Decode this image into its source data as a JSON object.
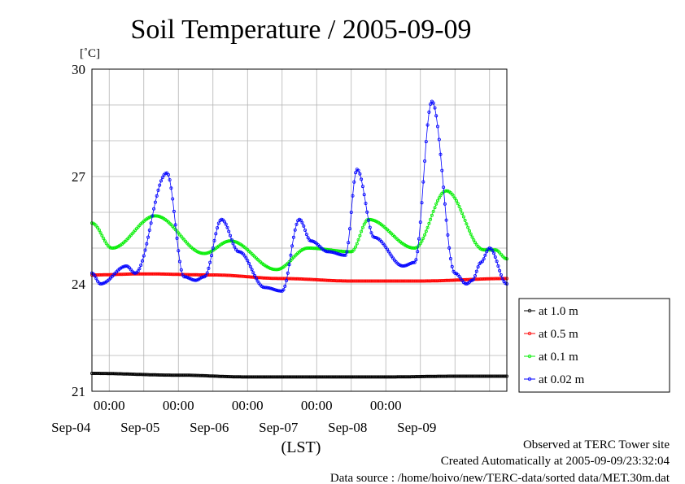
{
  "chart_data": {
    "type": "line",
    "title": "Soil Temperature / 2005-09-09",
    "ylabel": "[˚C]",
    "xlabel": "(LST)",
    "ylim": [
      21,
      30
    ],
    "yticks": [
      21,
      24,
      27,
      30
    ],
    "xlim": [
      "2005-09-03 18:00",
      "2005-09-09 18:00"
    ],
    "xtick_time_labels": [
      "00:00",
      "00:00",
      "00:00",
      "00:00",
      "00:00"
    ],
    "xtick_times": [
      "2005-09-04 00:00",
      "2005-09-05 00:00",
      "2005-09-06 00:00",
      "2005-09-07 00:00",
      "2005-09-08 00:00"
    ],
    "date_labels": [
      "Sep-04",
      "Sep-05",
      "Sep-06",
      "Sep-07",
      "Sep-08",
      "Sep-09"
    ],
    "grid": true,
    "legend_position": "right",
    "series": [
      {
        "name": "at 1.0 m",
        "color": "#000000",
        "x": [
          "2005-09-03 18:00",
          "2005-09-05 00:00",
          "2005-09-06 00:00",
          "2005-09-07 00:00",
          "2005-09-08 00:00",
          "2005-09-09 00:00",
          "2005-09-09 18:00"
        ],
        "values": [
          21.5,
          21.45,
          21.4,
          21.4,
          21.4,
          21.42,
          21.42
        ]
      },
      {
        "name": "at 0.5 m",
        "color": "#ff0000",
        "x": [
          "2005-09-03 18:00",
          "2005-09-04 12:00",
          "2005-09-05 12:00",
          "2005-09-06 12:00",
          "2005-09-07 12:00",
          "2005-09-08 12:00",
          "2005-09-09 18:00"
        ],
        "values": [
          24.25,
          24.28,
          24.25,
          24.15,
          24.08,
          24.08,
          24.15
        ]
      },
      {
        "name": "at 0.1 m",
        "color": "#00ee00",
        "x": [
          "2005-09-03 18:00",
          "2005-09-04 01:00",
          "2005-09-04 16:00",
          "2005-09-05 09:00",
          "2005-09-05 18:00",
          "2005-09-06 10:00",
          "2005-09-06 21:00",
          "2005-09-07 12:00",
          "2005-09-07 18:00",
          "2005-09-08 10:00",
          "2005-09-08 21:00",
          "2005-09-09 10:00",
          "2005-09-09 14:00",
          "2005-09-09 18:00"
        ],
        "values": [
          25.7,
          25.0,
          25.9,
          24.85,
          25.2,
          24.4,
          25.0,
          24.9,
          25.8,
          25.0,
          26.6,
          24.95,
          24.95,
          24.7
        ]
      },
      {
        "name": "at 0.02 m",
        "color": "#0000ff",
        "x": [
          "2005-09-03 18:00",
          "2005-09-03 21:00",
          "2005-09-04 06:00",
          "2005-09-04 09:00",
          "2005-09-04 20:00",
          "2005-09-05 02:00",
          "2005-09-05 06:00",
          "2005-09-05 09:00",
          "2005-09-05 15:00",
          "2005-09-05 21:00",
          "2005-09-06 06:00",
          "2005-09-06 12:00",
          "2005-09-06 18:00",
          "2005-09-06 22:00",
          "2005-09-07 04:00",
          "2005-09-07 10:00",
          "2005-09-07 14:00",
          "2005-09-07 20:00",
          "2005-09-08 06:00",
          "2005-09-08 10:00",
          "2005-09-08 16:00",
          "2005-09-09 00:00",
          "2005-09-09 04:00",
          "2005-09-09 06:00",
          "2005-09-09 09:00",
          "2005-09-09 12:00",
          "2005-09-09 18:00"
        ],
        "values": [
          24.3,
          24.0,
          24.5,
          24.3,
          27.1,
          24.2,
          24.1,
          24.2,
          25.8,
          24.9,
          23.9,
          23.8,
          25.8,
          25.2,
          24.9,
          24.8,
          27.2,
          25.3,
          24.5,
          24.6,
          29.1,
          24.3,
          24.0,
          24.1,
          24.6,
          25.0,
          24.0
        ]
      }
    ]
  },
  "footer": {
    "line1": "Observed at TERC Tower site",
    "line2": "Created Automatically at 2005-09-09/23:32:04",
    "line3": "Data source : /home/hoivo/new/TERC-data/sorted  data/MET.30m.dat"
  }
}
